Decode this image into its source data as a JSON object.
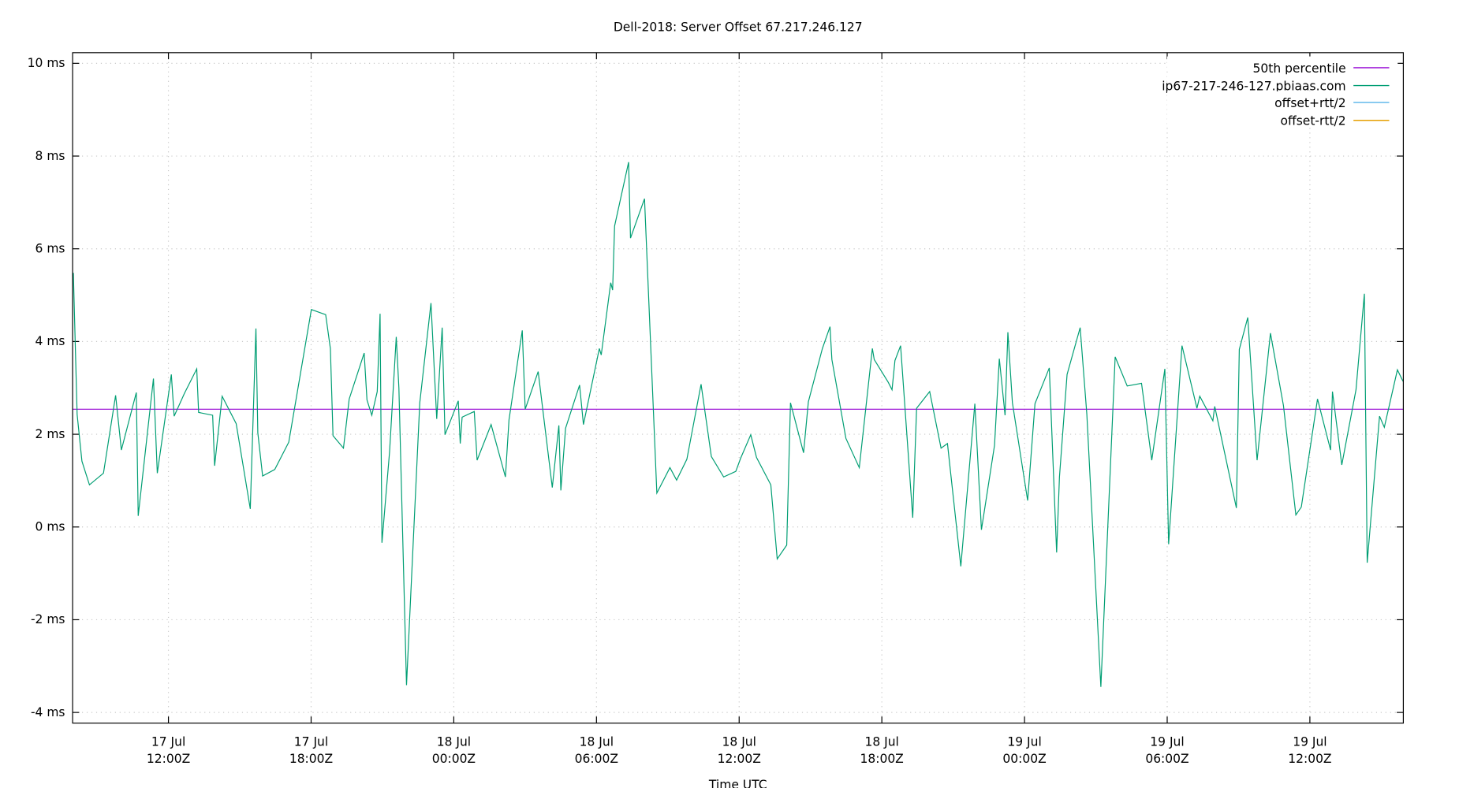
{
  "chart_data": {
    "type": "line",
    "title": "Dell-2018: Server Offset 67.217.246.127",
    "xlabel": "Time UTC",
    "ylabel": "",
    "x_units": "hours since 17 Jul 00:00Z",
    "xlim": [
      7.97,
      63.93
    ],
    "ylim": [
      -4.23,
      10.23
    ],
    "grid": true,
    "legend_position": "top-right",
    "y_ticks": [
      {
        "value": -4,
        "label": "-4 ms"
      },
      {
        "value": -2,
        "label": "-2 ms"
      },
      {
        "value": 0,
        "label": "0 ms"
      },
      {
        "value": 2,
        "label": "2 ms"
      },
      {
        "value": 4,
        "label": "4 ms"
      },
      {
        "value": 6,
        "label": "6 ms"
      },
      {
        "value": 8,
        "label": "8 ms"
      },
      {
        "value": 10,
        "label": "10 ms"
      }
    ],
    "x_ticks": [
      {
        "value": 12,
        "date": "17 Jul",
        "time": "12:00Z"
      },
      {
        "value": 18,
        "date": "17 Jul",
        "time": "18:00Z"
      },
      {
        "value": 24,
        "date": "18 Jul",
        "time": "00:00Z"
      },
      {
        "value": 30,
        "date": "18 Jul",
        "time": "06:00Z"
      },
      {
        "value": 36,
        "date": "18 Jul",
        "time": "12:00Z"
      },
      {
        "value": 42,
        "date": "18 Jul",
        "time": "18:00Z"
      },
      {
        "value": 48,
        "date": "19 Jul",
        "time": "00:00Z"
      },
      {
        "value": 54,
        "date": "19 Jul",
        "time": "06:00Z"
      },
      {
        "value": 60,
        "date": "19 Jul",
        "time": "12:00Z"
      }
    ],
    "series": [
      {
        "name": "50th percentile",
        "color": "#9400d3",
        "type": "hline",
        "value": 2.54
      },
      {
        "name": "ip67-217-246-127.pbiaas.com",
        "color": "#009e73",
        "x": [
          8.0,
          8.16,
          8.36,
          8.68,
          9.27,
          9.78,
          10.02,
          10.65,
          10.73,
          11.37,
          11.53,
          12.12,
          12.24,
          12.67,
          13.19,
          13.27,
          13.86,
          13.94,
          14.26,
          14.85,
          15.44,
          15.68,
          15.76,
          15.96,
          16.47,
          17.06,
          18.01,
          18.61,
          18.81,
          18.92,
          19.36,
          19.6,
          20.23,
          20.35,
          20.55,
          20.78,
          20.9,
          20.98,
          21.3,
          21.58,
          21.69,
          22.01,
          22.57,
          23.04,
          23.28,
          23.51,
          23.63,
          24.19,
          24.27,
          24.35,
          24.86,
          24.98,
          25.57,
          26.17,
          26.32,
          26.88,
          27.0,
          27.55,
          28.14,
          28.42,
          28.5,
          28.7,
          29.29,
          29.45,
          30.12,
          30.2,
          30.6,
          30.68,
          30.76,
          31.35,
          31.43,
          32.02,
          32.54,
          33.09,
          33.37,
          33.8,
          34.4,
          34.83,
          35.35,
          35.86,
          36.06,
          36.49,
          36.73,
          37.33,
          37.6,
          38.0,
          38.16,
          38.71,
          38.91,
          39.5,
          39.82,
          39.9,
          40.49,
          41.05,
          41.6,
          41.68,
          42.27,
          42.43,
          42.55,
          42.79,
          43.3,
          43.46,
          44.01,
          44.49,
          44.76,
          45.32,
          45.91,
          46.19,
          46.74,
          46.94,
          47.18,
          47.3,
          47.49,
          48.13,
          48.44,
          49.04,
          49.35,
          49.47,
          49.79,
          50.34,
          50.62,
          51.21,
          51.81,
          52.32,
          52.92,
          53.35,
          53.9,
          54.06,
          54.62,
          55.25,
          55.37,
          55.92,
          56.0,
          56.91,
          57.03,
          57.39,
          57.78,
          58.34,
          58.89,
          59.41,
          59.64,
          60.32,
          60.87,
          60.95,
          61.34,
          61.94,
          62.29,
          62.41,
          62.93,
          63.13,
          63.68,
          63.92
        ],
        "y": [
          5.48,
          2.43,
          1.42,
          0.91,
          1.16,
          2.84,
          1.66,
          2.9,
          0.24,
          3.2,
          1.16,
          3.29,
          2.39,
          2.88,
          3.41,
          2.47,
          2.41,
          1.32,
          2.82,
          2.23,
          0.39,
          4.28,
          2.03,
          1.1,
          1.24,
          1.83,
          4.69,
          4.58,
          3.85,
          1.97,
          1.7,
          2.76,
          3.75,
          2.74,
          2.41,
          2.92,
          4.6,
          -0.34,
          1.62,
          4.1,
          3.0,
          -3.41,
          2.68,
          4.83,
          2.33,
          4.3,
          1.99,
          2.72,
          1.8,
          2.37,
          2.49,
          1.44,
          2.21,
          1.08,
          2.31,
          4.24,
          2.54,
          3.35,
          0.85,
          2.19,
          0.79,
          2.13,
          3.06,
          2.21,
          3.85,
          3.71,
          5.27,
          5.11,
          6.49,
          7.87,
          6.23,
          7.08,
          0.73,
          1.28,
          1.01,
          1.46,
          3.08,
          1.52,
          1.08,
          1.2,
          1.48,
          1.99,
          1.5,
          0.91,
          -0.69,
          -0.39,
          2.68,
          1.6,
          2.7,
          3.85,
          4.32,
          3.61,
          1.91,
          1.28,
          3.85,
          3.61,
          3.12,
          2.96,
          3.59,
          3.91,
          0.2,
          2.56,
          2.92,
          1.7,
          1.8,
          -0.85,
          2.66,
          -0.06,
          1.76,
          3.63,
          2.41,
          4.2,
          2.68,
          0.57,
          2.66,
          3.43,
          -0.55,
          1.08,
          3.29,
          4.3,
          2.43,
          -3.45,
          3.67,
          3.04,
          3.1,
          1.44,
          3.41,
          -0.37,
          3.91,
          2.56,
          2.82,
          2.29,
          2.6,
          0.41,
          3.83,
          4.52,
          1.44,
          4.18,
          2.62,
          0.26,
          0.43,
          2.76,
          1.66,
          2.92,
          1.34,
          2.96,
          5.03,
          -0.77,
          2.39,
          2.15,
          3.39,
          3.14
        ]
      },
      {
        "name": "offset+rtt/2",
        "color": "#56b4e9",
        "x": [],
        "y": []
      },
      {
        "name": "offset-rtt/2",
        "color": "#e69f00",
        "x": [],
        "y": []
      }
    ]
  }
}
